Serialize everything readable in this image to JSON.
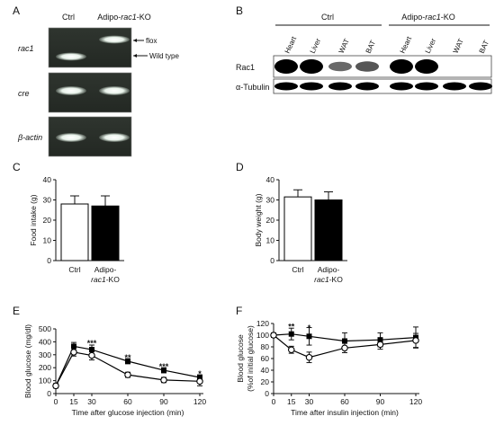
{
  "figure": {
    "panel_a": {
      "letter": "A",
      "cols": [
        "Ctrl",
        "Adipo-rac1-KO"
      ],
      "rows": [
        "rac1",
        "cre",
        "β-actin"
      ],
      "band_labels": [
        "flox",
        "Wild type"
      ]
    },
    "panel_b": {
      "letter": "B",
      "groups": [
        "Ctrl",
        "Adipo-rac1-KO"
      ],
      "tissues": [
        "Heart",
        "Liver",
        "WAT",
        "BAT",
        "Heart",
        "Liver",
        "WAT",
        "BAT"
      ],
      "rows": [
        "Rac1",
        "α-Tubulin"
      ],
      "rac1_intensity": [
        1.0,
        1.0,
        0.45,
        0.55,
        1.0,
        1.0,
        0.0,
        0.0
      ],
      "tubulin_intensity": [
        1,
        1,
        1,
        1,
        1,
        1,
        1,
        1
      ]
    }
  },
  "chart_data": [
    {
      "panel": "C",
      "type": "bar",
      "categories": [
        "Ctrl",
        "Adipo-rac1-KO"
      ],
      "values": [
        28,
        27
      ],
      "errors": [
        4,
        5
      ],
      "fills": [
        "#ffffff",
        "#000000"
      ],
      "ylabel": "Food intake (g)",
      "ylim": [
        0,
        40
      ],
      "yticks": [
        "0",
        "10",
        "20",
        "30",
        "40"
      ]
    },
    {
      "panel": "D",
      "type": "bar",
      "categories": [
        "Ctrl",
        "Adipo-rac1-KO"
      ],
      "values": [
        31.5,
        30
      ],
      "errors": [
        3.5,
        4
      ],
      "fills": [
        "#ffffff",
        "#000000"
      ],
      "ylabel": "Body weight (g)",
      "ylim": [
        0,
        40
      ],
      "yticks": [
        "0",
        "10",
        "20",
        "30",
        "40"
      ]
    },
    {
      "panel": "E",
      "type": "line",
      "x": [
        0,
        15,
        30,
        60,
        90,
        120
      ],
      "xticks": [
        "0",
        "15",
        "30",
        "60",
        "90",
        "120"
      ],
      "xlabel": "Time  after glucose injection  (min)",
      "ylabel": "Blood glucose (mg/dl)",
      "ylim": [
        0,
        500
      ],
      "yticks": [
        "0",
        "100",
        "200",
        "300",
        "400",
        "500"
      ],
      "series": [
        {
          "marker": "filled-square",
          "values": [
            60,
            365,
            340,
            250,
            180,
            125
          ],
          "errors": [
            8,
            30,
            35,
            20,
            20,
            20
          ]
        },
        {
          "marker": "open-circle",
          "values": [
            60,
            320,
            295,
            145,
            105,
            95
          ],
          "errors": [
            8,
            30,
            35,
            20,
            20,
            35
          ]
        }
      ],
      "annotations": [
        {
          "x": 30,
          "y": 395,
          "text": "***"
        },
        {
          "x": 60,
          "y": 285,
          "text": "**"
        },
        {
          "x": 90,
          "y": 215,
          "text": "***"
        },
        {
          "x": 120,
          "y": 160,
          "text": "*"
        }
      ]
    },
    {
      "panel": "F",
      "type": "line",
      "x": [
        0,
        15,
        30,
        60,
        90,
        120
      ],
      "xticks": [
        "0",
        "15",
        "30",
        "60",
        "90",
        "120"
      ],
      "xlabel": "Time  after insulin injection  (min)",
      "ylabel": "Blood glucose\n(%of initial glucose)",
      "ylim": [
        0,
        120
      ],
      "yticks": [
        "0",
        "20",
        "40",
        "60",
        "80",
        "100",
        "120"
      ],
      "series": [
        {
          "marker": "filled-square",
          "values": [
            100,
            102,
            98,
            90,
            92,
            96
          ],
          "errors": [
            3,
            10,
            15,
            14,
            12,
            18
          ]
        },
        {
          "marker": "open-circle",
          "values": [
            100,
            75,
            62,
            78,
            84,
            91
          ],
          "errors": [
            3,
            6,
            9,
            8,
            8,
            12
          ]
        }
      ],
      "annotations": [
        {
          "x": 15,
          "y": 116,
          "text": "**"
        },
        {
          "x": 30,
          "y": 114,
          "text": "*"
        }
      ]
    }
  ]
}
